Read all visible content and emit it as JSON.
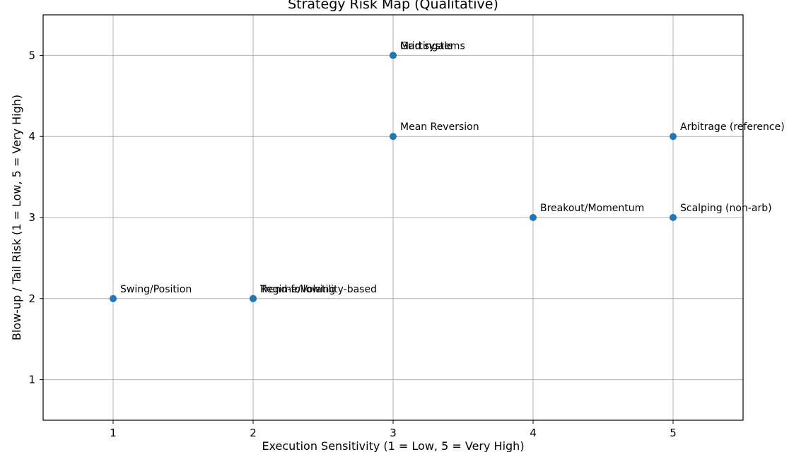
{
  "chart_data": {
    "type": "scatter",
    "title": "Strategy Risk Map (Qualitative)",
    "xlabel": "Execution Sensitivity (1 = Low, 5 = Very High)",
    "ylabel": "Blow-up / Tail Risk (1 = Low, 5 = Very High)",
    "xlim": [
      0.5,
      5.5
    ],
    "ylim": [
      0.5,
      5.5
    ],
    "xticks": [
      1,
      2,
      3,
      4,
      5
    ],
    "yticks": [
      1,
      2,
      3,
      4,
      5
    ],
    "grid": true,
    "marker_color": "#1f77b4",
    "points": [
      {
        "label": "Grid systems",
        "x": 3,
        "y": 5
      },
      {
        "label": "Martingale",
        "x": 3,
        "y": 5
      },
      {
        "label": "Mean Reversion",
        "x": 3,
        "y": 4
      },
      {
        "label": "Arbitrage (reference)",
        "x": 5,
        "y": 4
      },
      {
        "label": "Breakout/Momentum",
        "x": 4,
        "y": 3
      },
      {
        "label": "Scalping (non-arb)",
        "x": 5,
        "y": 3
      },
      {
        "label": "Swing/Position",
        "x": 1,
        "y": 2
      },
      {
        "label": "Trend-following",
        "x": 2,
        "y": 2
      },
      {
        "label": "Regime/Volatility-based",
        "x": 2,
        "y": 2
      }
    ]
  }
}
